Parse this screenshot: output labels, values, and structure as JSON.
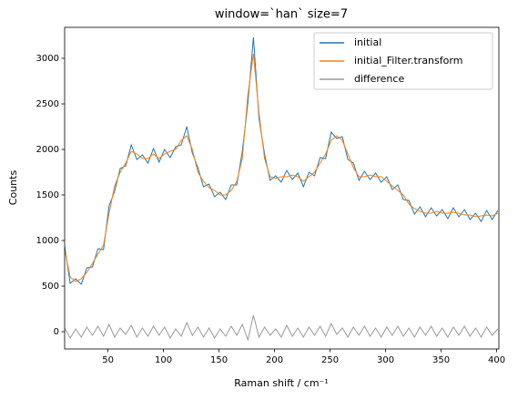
{
  "chart_data": {
    "type": "line",
    "title": "window=`han` size=7",
    "x_label": "Raman shift / cm⁻¹",
    "y_label": "Counts",
    "x": [
      11,
      16,
      21,
      26,
      31,
      36,
      41,
      46,
      51,
      56,
      61,
      66,
      71,
      76,
      81,
      86,
      91,
      96,
      101,
      106,
      111,
      116,
      121,
      126,
      131,
      136,
      141,
      146,
      151,
      156,
      161,
      166,
      171,
      176,
      181,
      186,
      191,
      196,
      201,
      206,
      211,
      216,
      221,
      226,
      231,
      236,
      241,
      246,
      251,
      256,
      261,
      266,
      271,
      276,
      281,
      286,
      291,
      296,
      301,
      306,
      311,
      316,
      321,
      326,
      331,
      336,
      341,
      346,
      351,
      356,
      361,
      366,
      371,
      376,
      381,
      386,
      391,
      396,
      401
    ],
    "series": [
      {
        "name": "initial",
        "color": "#1f77b4",
        "values": [
          940,
          530,
          580,
          520,
          700,
          710,
          910,
          900,
          1380,
          1540,
          1790,
          1820,
          2050,
          1890,
          1940,
          1850,
          2010,
          1860,
          2000,
          1910,
          2030,
          2050,
          2250,
          1960,
          1800,
          1590,
          1620,
          1480,
          1530,
          1450,
          1610,
          1610,
          1980,
          2510,
          3230,
          2340,
          1950,
          1660,
          1710,
          1640,
          1770,
          1670,
          1740,
          1590,
          1750,
          1710,
          1910,
          1900,
          2190,
          2120,
          2140,
          1890,
          1850,
          1660,
          1760,
          1670,
          1740,
          1640,
          1700,
          1560,
          1610,
          1450,
          1440,
          1290,
          1370,
          1260,
          1360,
          1270,
          1340,
          1240,
          1360,
          1260,
          1340,
          1230,
          1300,
          1210,
          1330,
          1230,
          1330
        ]
      },
      {
        "name": "initial_Filter.transform",
        "color": "#ff7f0e",
        "values": [
          900,
          600,
          550,
          580,
          650,
          750,
          850,
          950,
          1300,
          1600,
          1750,
          1850,
          1980,
          1950,
          1900,
          1900,
          1950,
          1900,
          1950,
          1980,
          2000,
          2100,
          2150,
          2000,
          1750,
          1650,
          1580,
          1550,
          1500,
          1500,
          1550,
          1650,
          1900,
          2600,
          3050,
          2400,
          1900,
          1700,
          1680,
          1700,
          1700,
          1720,
          1700,
          1650,
          1700,
          1750,
          1850,
          1950,
          2100,
          2150,
          2100,
          1950,
          1800,
          1700,
          1700,
          1720,
          1700,
          1700,
          1650,
          1600,
          1550,
          1500,
          1400,
          1350,
          1320,
          1300,
          1300,
          1320,
          1300,
          1300,
          1310,
          1300,
          1280,
          1280,
          1260,
          1270,
          1280,
          1270,
          1300
        ]
      },
      {
        "name": "difference",
        "color": "#999999",
        "values": [
          40,
          -70,
          30,
          -60,
          50,
          -40,
          60,
          -50,
          80,
          -60,
          40,
          -30,
          70,
          -60,
          40,
          -50,
          60,
          -40,
          50,
          -70,
          30,
          -50,
          100,
          -40,
          50,
          -60,
          40,
          -70,
          30,
          -50,
          60,
          -40,
          80,
          -90,
          180,
          -60,
          50,
          -40,
          30,
          -60,
          70,
          -50,
          40,
          -60,
          50,
          -40,
          60,
          -50,
          90,
          -30,
          40,
          -60,
          50,
          -40,
          60,
          -50,
          40,
          -60,
          50,
          -40,
          60,
          -50,
          40,
          -60,
          50,
          -40,
          60,
          -50,
          40,
          -60,
          50,
          -40,
          60,
          -50,
          40,
          -60,
          50,
          -40,
          30
        ]
      }
    ],
    "xlim": [
      11,
      402
    ],
    "ylim": [
      -190,
      3340
    ],
    "xticks": [
      50,
      100,
      150,
      200,
      250,
      300,
      350,
      400
    ],
    "yticks": [
      0,
      500,
      1000,
      1500,
      2000,
      2500,
      3000
    ],
    "legend": "upper right"
  }
}
